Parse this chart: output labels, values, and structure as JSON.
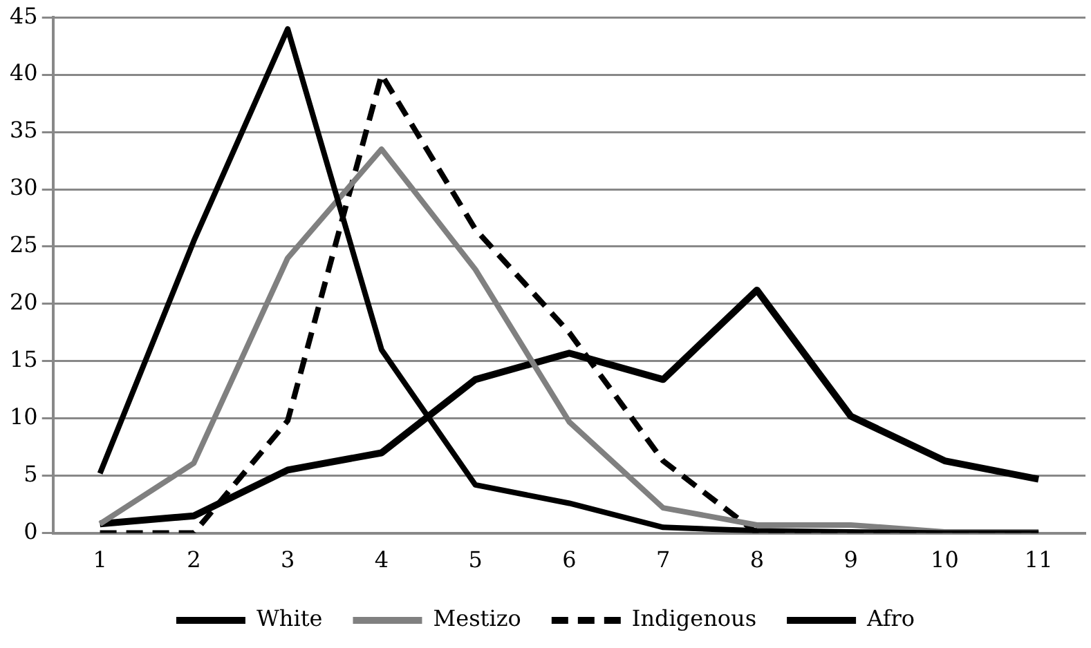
{
  "chart_data": {
    "type": "line",
    "categories": [
      "1",
      "2",
      "3",
      "4",
      "5",
      "6",
      "7",
      "8",
      "9",
      "10",
      "11"
    ],
    "series": [
      {
        "name": "White",
        "color": "#000000",
        "line_style": "solid",
        "values": [
          5.2,
          25.5,
          44,
          16,
          4.2,
          2.6,
          0.5,
          0.2,
          0.1,
          0,
          0
        ]
      },
      {
        "name": "Mestizo",
        "color": "#808080",
        "line_style": "solid",
        "values": [
          0.8,
          6.1,
          24,
          33.5,
          23,
          9.7,
          2.2,
          0.7,
          0.7,
          0.1,
          0.1
        ]
      },
      {
        "name": "Indigenous",
        "color": "#000000",
        "line_style": "dashed",
        "values": [
          0,
          0,
          9.8,
          40,
          26.5,
          17.5,
          6.3,
          0,
          0,
          0,
          0
        ]
      },
      {
        "name": "Afro",
        "color": "#000000",
        "line_style": "solid",
        "values": [
          0.8,
          1.5,
          5.5,
          7,
          13.4,
          15.7,
          13.4,
          21.2,
          10.2,
          6.3,
          4.7
        ]
      }
    ],
    "ylim": [
      0,
      45
    ],
    "yticks": [
      0,
      5,
      10,
      15,
      20,
      25,
      30,
      35,
      40,
      45
    ],
    "grid": "y",
    "legend": "bottom",
    "marker": "none"
  }
}
